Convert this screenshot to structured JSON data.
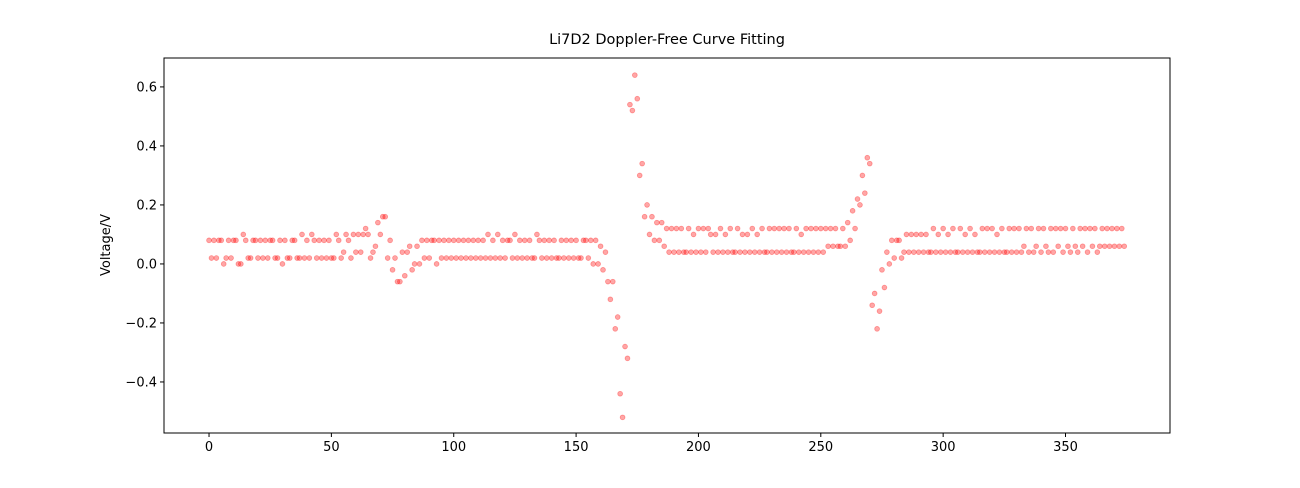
{
  "chart_data": {
    "type": "scatter",
    "title": "Li7D2 Doppler-Free Curve Fitting",
    "y_label": "Voltage/V",
    "color": "#ff0000",
    "alpha": 0.35,
    "xlim": [
      -18.4,
      392.7
    ],
    "ylim": [
      -0.573,
      0.698
    ],
    "xticks": [
      0,
      50,
      100,
      150,
      200,
      250,
      300,
      350
    ],
    "yticks": [
      {
        "value": -0.4,
        "label": "−0.4"
      },
      {
        "value": -0.2,
        "label": "−0.2"
      },
      {
        "value": 0,
        "label": "0.0"
      },
      0.2,
      0.4,
      0.6
    ],
    "x": [
      0,
      1,
      2,
      3,
      4,
      5,
      6,
      7,
      8,
      9,
      10,
      11,
      12,
      13,
      14,
      15,
      16,
      17,
      18,
      19,
      20,
      21,
      22,
      23,
      24,
      25,
      26,
      27,
      28,
      29,
      30,
      31,
      32,
      33,
      34,
      35,
      36,
      37,
      38,
      39,
      40,
      41,
      42,
      43,
      44,
      45,
      46,
      47,
      48,
      49,
      50,
      51,
      52,
      53,
      54,
      55,
      56,
      57,
      58,
      59,
      60,
      61,
      62,
      63,
      64,
      65,
      66,
      67,
      68,
      69,
      70,
      71,
      72,
      73,
      74,
      75,
      76,
      77,
      78,
      79,
      80,
      81,
      82,
      83,
      84,
      85,
      86,
      87,
      88,
      89,
      90,
      91,
      92,
      93,
      94,
      95,
      96,
      97,
      98,
      99,
      100,
      101,
      102,
      103,
      104,
      105,
      106,
      107,
      108,
      109,
      110,
      111,
      112,
      113,
      114,
      115,
      116,
      117,
      118,
      119,
      120,
      121,
      122,
      123,
      124,
      125,
      126,
      127,
      128,
      129,
      130,
      131,
      132,
      133,
      134,
      135,
      136,
      137,
      138,
      139,
      140,
      141,
      142,
      143,
      144,
      145,
      146,
      147,
      148,
      149,
      150,
      151,
      152,
      153,
      154,
      155,
      156,
      157,
      158,
      159,
      160,
      161,
      162,
      163,
      164,
      165,
      166,
      167,
      168,
      169,
      170,
      171,
      172,
      173,
      174,
      175,
      176,
      177,
      178,
      179,
      180,
      181,
      182,
      183,
      184,
      185,
      186,
      187,
      188,
      189,
      190,
      191,
      192,
      193,
      194,
      195,
      196,
      197,
      198,
      199,
      200,
      201,
      202,
      203,
      204,
      205,
      206,
      207,
      208,
      209,
      210,
      211,
      212,
      213,
      214,
      215,
      216,
      217,
      218,
      219,
      220,
      221,
      222,
      223,
      224,
      225,
      226,
      227,
      228,
      229,
      230,
      231,
      232,
      233,
      234,
      235,
      236,
      237,
      238,
      239,
      240,
      241,
      242,
      243,
      244,
      245,
      246,
      247,
      248,
      249,
      250,
      251,
      252,
      253,
      254,
      255,
      256,
      257,
      258,
      259,
      260,
      261,
      262,
      263,
      264,
      265,
      266,
      267,
      268,
      269,
      270,
      271,
      272,
      273,
      274,
      275,
      276,
      277,
      278,
      279,
      280,
      281,
      282,
      283,
      284,
      285,
      286,
      287,
      288,
      289,
      290,
      291,
      292,
      293,
      294,
      295,
      296,
      297,
      298,
      299,
      300,
      301,
      302,
      303,
      304,
      305,
      306,
      307,
      308,
      309,
      310,
      311,
      312,
      313,
      314,
      315,
      316,
      317,
      318,
      319,
      320,
      321,
      322,
      323,
      324,
      325,
      326,
      327,
      328,
      329,
      330,
      331,
      332,
      333,
      334,
      335,
      336,
      337,
      338,
      339,
      340,
      341,
      342,
      343,
      344,
      345,
      346,
      347,
      348,
      349,
      350,
      351,
      352,
      353,
      354,
      355,
      356,
      357,
      358,
      359,
      360,
      361,
      362,
      363,
      364,
      365,
      366,
      367,
      368,
      369,
      370,
      371,
      372,
      373,
      374
    ],
    "values": [
      0.08,
      0.02,
      0.08,
      0.02,
      0.08,
      0.08,
      0,
      0.02,
      0.08,
      0.02,
      0.08,
      0.08,
      0,
      0,
      0.1,
      0.08,
      0.02,
      0.02,
      0.08,
      0.08,
      0.02,
      0.08,
      0.02,
      0.08,
      0.02,
      0.08,
      0.08,
      0.02,
      0.02,
      0.08,
      0,
      0.08,
      0.02,
      0.02,
      0.08,
      0.08,
      0.02,
      0.02,
      0.1,
      0.02,
      0.08,
      0.02,
      0.1,
      0.08,
      0.02,
      0.08,
      0.02,
      0.08,
      0.02,
      0.08,
      0.02,
      0.02,
      0.1,
      0.08,
      0.02,
      0.04,
      0.1,
      0.08,
      0.02,
      0.1,
      0.04,
      0.1,
      0.04,
      0.1,
      0.12,
      0.1,
      0.02,
      0.04,
      0.06,
      0.14,
      0.1,
      0.16,
      0.16,
      0.02,
      0.08,
      -0.02,
      0.02,
      -0.06,
      -0.06,
      0.04,
      -0.04,
      0.04,
      0.06,
      -0.02,
      0,
      0.06,
      0,
      0.08,
      0.02,
      0.08,
      0.02,
      0.08,
      0.08,
      0,
      0.08,
      0.02,
      0.08,
      0.02,
      0.08,
      0.02,
      0.08,
      0.02,
      0.08,
      0.02,
      0.08,
      0.02,
      0.08,
      0.02,
      0.08,
      0.02,
      0.08,
      0.02,
      0.08,
      0.02,
      0.1,
      0.02,
      0.08,
      0.02,
      0.1,
      0.02,
      0.08,
      0.02,
      0.08,
      0.08,
      0.02,
      0.1,
      0.02,
      0.08,
      0.02,
      0.08,
      0.02,
      0.08,
      0.02,
      0.02,
      0.1,
      0.08,
      0.02,
      0.08,
      0.02,
      0.08,
      0.02,
      0.08,
      0.02,
      0.02,
      0.08,
      0.02,
      0.08,
      0.02,
      0.08,
      0.02,
      0.08,
      0.02,
      0.02,
      0.08,
      0.08,
      0.02,
      0.08,
      0,
      0.08,
      0,
      0.06,
      -0.02,
      0.04,
      -0.06,
      -0.12,
      -0.06,
      -0.22,
      -0.18,
      -0.44,
      -0.52,
      -0.28,
      -0.32,
      0.54,
      0.52,
      0.64,
      0.56,
      0.3,
      0.34,
      0.16,
      0.2,
      0.1,
      0.16,
      0.08,
      0.14,
      0.08,
      0.14,
      0.06,
      0.12,
      0.04,
      0.12,
      0.04,
      0.12,
      0.04,
      0.12,
      0.04,
      0.04,
      0.12,
      0.04,
      0.1,
      0.04,
      0.12,
      0.04,
      0.12,
      0.04,
      0.12,
      0.1,
      0.04,
      0.1,
      0.04,
      0.12,
      0.04,
      0.1,
      0.04,
      0.12,
      0.04,
      0.04,
      0.12,
      0.04,
      0.1,
      0.04,
      0.1,
      0.04,
      0.12,
      0.04,
      0.1,
      0.04,
      0.12,
      0.04,
      0.04,
      0.12,
      0.04,
      0.12,
      0.04,
      0.12,
      0.04,
      0.12,
      0.04,
      0.12,
      0.04,
      0.04,
      0.12,
      0.04,
      0.1,
      0.04,
      0.12,
      0.04,
      0.12,
      0.04,
      0.12,
      0.04,
      0.12,
      0.04,
      0.12,
      0.06,
      0.12,
      0.06,
      0.12,
      0.06,
      0.06,
      0.12,
      0.06,
      0.14,
      0.08,
      0.18,
      0.12,
      0.22,
      0.2,
      0.3,
      0.24,
      0.36,
      0.34,
      -0.14,
      -0.1,
      -0.22,
      -0.16,
      -0.02,
      -0.08,
      0.04,
      0,
      0.08,
      0.02,
      0.08,
      0.08,
      0.02,
      0.04,
      0.1,
      0.04,
      0.1,
      0.04,
      0.1,
      0.04,
      0.1,
      0.04,
      0.1,
      0.04,
      0.04,
      0.12,
      0.04,
      0.1,
      0.04,
      0.12,
      0.04,
      0.1,
      0.04,
      0.12,
      0.04,
      0.04,
      0.12,
      0.04,
      0.1,
      0.04,
      0.12,
      0.04,
      0.1,
      0.04,
      0.04,
      0.12,
      0.04,
      0.12,
      0.04,
      0.12,
      0.04,
      0.1,
      0.04,
      0.12,
      0.04,
      0.04,
      0.12,
      0.04,
      0.12,
      0.04,
      0.12,
      0.04,
      0.06,
      0.12,
      0.04,
      0.12,
      0.04,
      0.06,
      0.12,
      0.04,
      0.12,
      0.06,
      0.04,
      0.12,
      0.04,
      0.12,
      0.06,
      0.12,
      0.04,
      0.12,
      0.06,
      0.04,
      0.12,
      0.06,
      0.04,
      0.12,
      0.06,
      0.12,
      0.04,
      0.12,
      0.06,
      0.12,
      0.04,
      0.06,
      0.12,
      0.06,
      0.12,
      0.06,
      0.12,
      0.06,
      0.12,
      0.06,
      0.12,
      0.06
    ]
  }
}
